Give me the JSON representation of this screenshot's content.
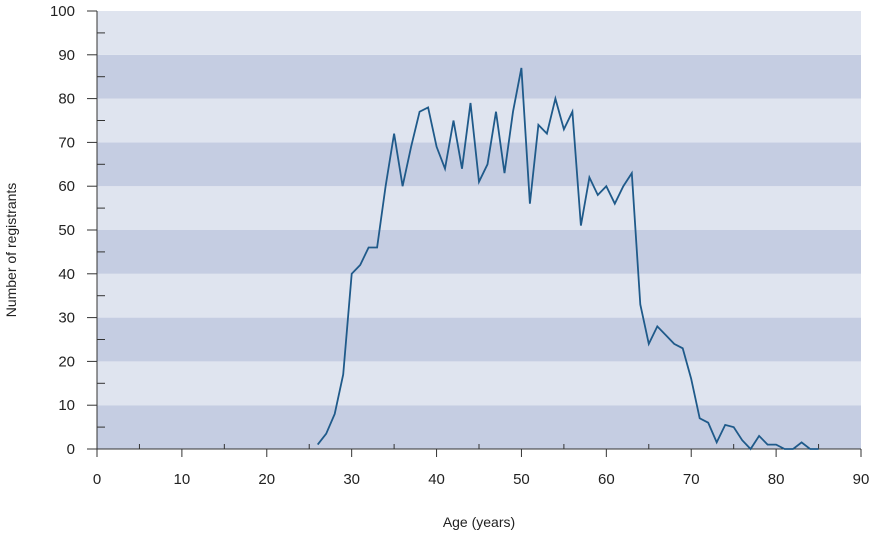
{
  "chart_data": {
    "type": "line",
    "title": "",
    "xlabel": "Age (years)",
    "ylabel": "Number of registrants",
    "xlim": [
      0,
      90
    ],
    "ylim": [
      0,
      100
    ],
    "x_major_ticks": [
      0,
      10,
      20,
      30,
      40,
      50,
      60,
      70,
      80,
      90
    ],
    "y_major_ticks": [
      0,
      10,
      20,
      30,
      40,
      50,
      60,
      70,
      80,
      90,
      100
    ],
    "x_minor_step": 5,
    "y_minor_step": 5,
    "grid": "alternating horizontal bands",
    "legend": "none",
    "colors": {
      "line": "#1f5a8a",
      "band_dark": "#c5cde2",
      "band_light": "#dfe4ef",
      "axis": "#333333"
    },
    "series": [
      {
        "x": [
          26,
          27,
          28,
          29,
          30,
          31,
          32,
          33,
          34,
          35,
          36,
          37,
          38,
          39,
          40,
          41,
          42,
          43,
          44,
          45,
          46,
          47,
          48,
          49,
          50,
          51,
          52,
          53,
          54,
          55,
          56,
          57,
          58,
          59,
          60,
          61,
          62,
          63,
          64,
          65,
          66,
          67,
          68,
          69,
          70,
          71,
          72,
          73,
          74,
          75,
          76,
          77,
          78,
          79,
          80,
          81,
          82,
          83,
          84,
          85
        ],
        "y": [
          1,
          3.5,
          8,
          17,
          40,
          42,
          46,
          46,
          60,
          72,
          60,
          69,
          77,
          78,
          69,
          64,
          75,
          64,
          79,
          61,
          65,
          77,
          63,
          77,
          87,
          56,
          74,
          72,
          80,
          73,
          77,
          51,
          62,
          58,
          60,
          56,
          60,
          63,
          33,
          24,
          28,
          26,
          24,
          23,
          16,
          7,
          6,
          1.5,
          5.5,
          5,
          2,
          0,
          3,
          1,
          1,
          0,
          0,
          1.5,
          0,
          0
        ]
      }
    ]
  }
}
